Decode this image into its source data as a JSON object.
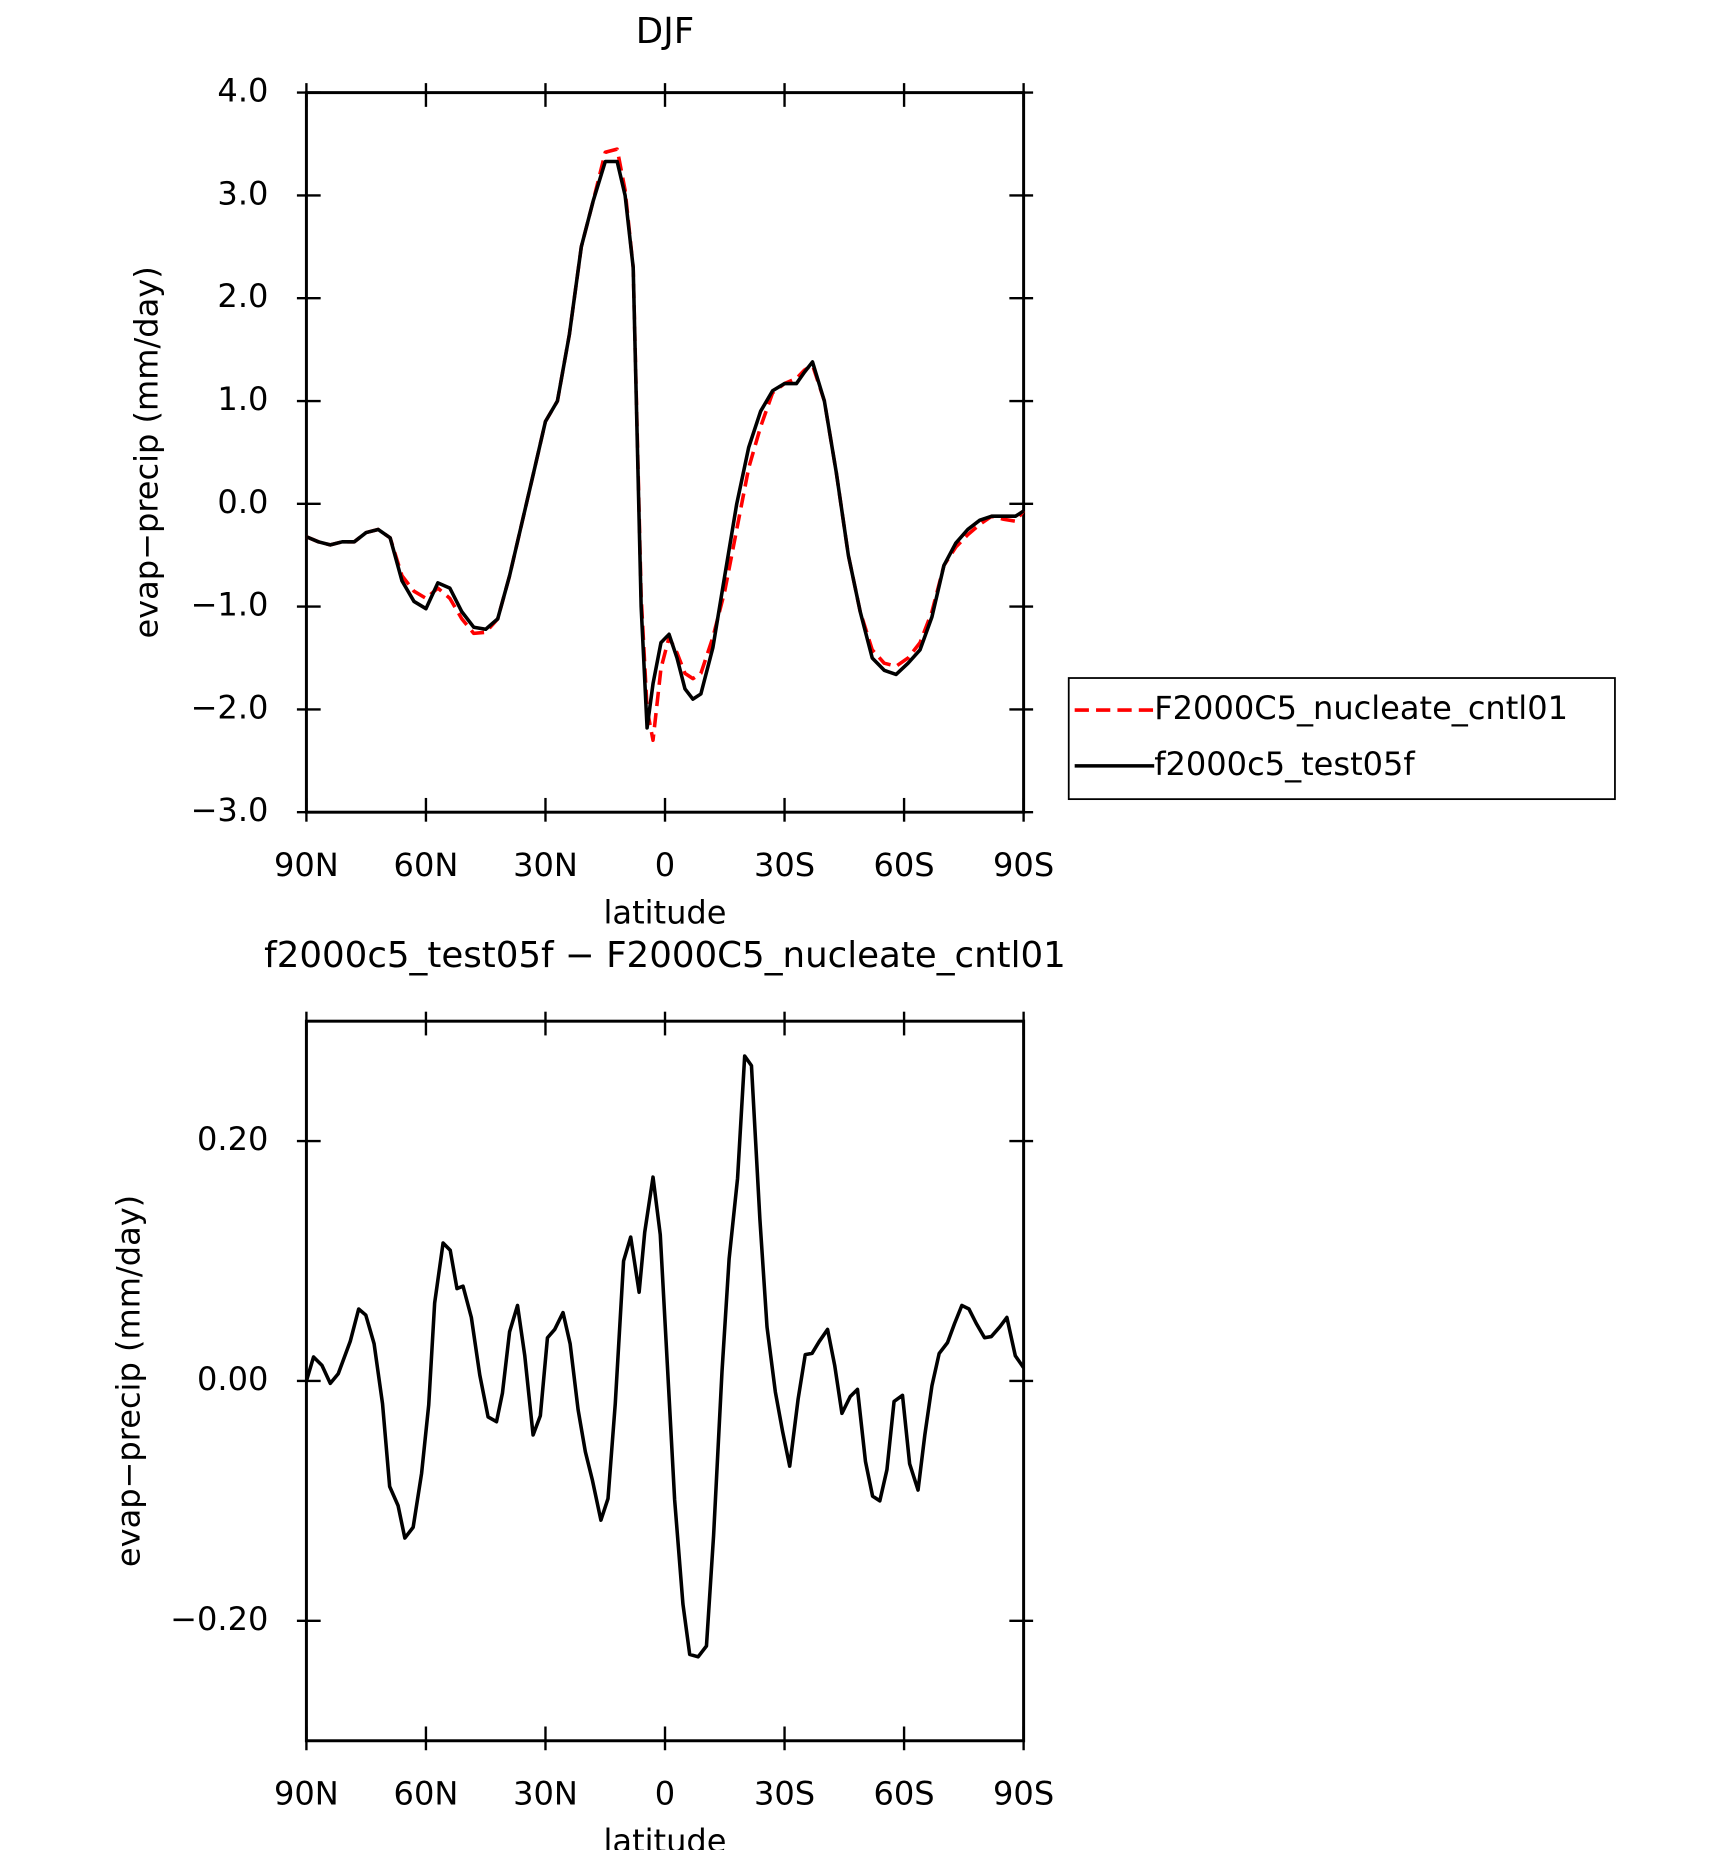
{
  "chart_data": [
    {
      "type": "line",
      "title": "DJF",
      "x_label": "latitude",
      "y_label": "evap−precip (mm/day)",
      "x": [
        90,
        87,
        84,
        81,
        78,
        75,
        72,
        69,
        66,
        63,
        60,
        57,
        54,
        51,
        48,
        45,
        42,
        39,
        36,
        33,
        30,
        27,
        24,
        21,
        18,
        15,
        12,
        10,
        8,
        6,
        4.5,
        3,
        1,
        -1,
        -3,
        -5,
        -7,
        -9,
        -12,
        -15,
        -18,
        -21,
        -24,
        -27,
        -30,
        -33,
        -35,
        -37,
        -40,
        -43,
        -46,
        -49,
        -52,
        -55,
        -58,
        -61,
        -64,
        -67,
        -70,
        -73,
        -76,
        -79,
        -82,
        -85,
        -88,
        -90
      ],
      "series": [
        {
          "name": "F2000C5_nucleate_cntl01",
          "color": "#ff0000",
          "linestyle": "dashed",
          "values": [
            -0.32,
            -0.37,
            -0.4,
            -0.37,
            -0.37,
            -0.28,
            -0.25,
            -0.33,
            -0.7,
            -0.85,
            -0.92,
            -0.82,
            -0.92,
            -1.12,
            -1.26,
            -1.25,
            -1.12,
            -0.7,
            -0.2,
            0.3,
            0.8,
            1.0,
            1.65,
            2.5,
            2.95,
            3.42,
            3.45,
            3.05,
            2.3,
            -0.9,
            -2.0,
            -2.3,
            -1.6,
            -1.3,
            -1.45,
            -1.65,
            -1.7,
            -1.65,
            -1.3,
            -0.85,
            -0.25,
            0.35,
            0.75,
            1.08,
            1.17,
            1.22,
            1.3,
            1.35,
            1.0,
            0.3,
            -0.5,
            -1.05,
            -1.42,
            -1.55,
            -1.58,
            -1.5,
            -1.35,
            -1.05,
            -0.6,
            -0.42,
            -0.3,
            -0.2,
            -0.12,
            -0.15,
            -0.17,
            -0.07
          ]
        },
        {
          "name": "f2000c5_test05f",
          "color": "#000000",
          "linestyle": "solid",
          "values": [
            -0.32,
            -0.37,
            -0.4,
            -0.37,
            -0.37,
            -0.28,
            -0.25,
            -0.33,
            -0.75,
            -0.95,
            -1.02,
            -0.77,
            -0.82,
            -1.05,
            -1.2,
            -1.22,
            -1.12,
            -0.7,
            -0.2,
            0.3,
            0.8,
            1.0,
            1.65,
            2.5,
            2.95,
            3.33,
            3.33,
            3.0,
            2.3,
            -1.0,
            -2.18,
            -1.75,
            -1.35,
            -1.27,
            -1.5,
            -1.8,
            -1.9,
            -1.85,
            -1.4,
            -0.7,
            0.0,
            0.55,
            0.9,
            1.1,
            1.17,
            1.17,
            1.28,
            1.38,
            1.0,
            0.3,
            -0.5,
            -1.05,
            -1.5,
            -1.62,
            -1.66,
            -1.55,
            -1.42,
            -1.1,
            -0.6,
            -0.38,
            -0.25,
            -0.16,
            -0.12,
            -0.12,
            -0.12,
            -0.07
          ]
        }
      ],
      "xlim": [
        90,
        -90
      ],
      "xticks": [
        {
          "value": 90,
          "label": "90N"
        },
        {
          "value": 60,
          "label": "60N"
        },
        {
          "value": 30,
          "label": "30N"
        },
        0,
        {
          "value": -30,
          "label": "30S"
        },
        {
          "value": -60,
          "label": "60S"
        },
        {
          "value": -90,
          "label": "90S"
        }
      ],
      "ylim": [
        -3,
        4
      ],
      "yticks": [
        {
          "value": -3,
          "label": "−3.0"
        },
        {
          "value": -2,
          "label": "−2.0"
        },
        {
          "value": -1,
          "label": "−1.0"
        },
        {
          "value": 0,
          "label": "0.0"
        },
        {
          "value": 1,
          "label": "1.0"
        },
        {
          "value": 2,
          "label": "2.0"
        },
        {
          "value": 3,
          "label": "3.0"
        },
        {
          "value": 4,
          "label": "4.0"
        }
      ],
      "legend": "right"
    },
    {
      "type": "line",
      "title": "f2000c5_test05f − F2000C5_nucleate_cntl01",
      "x_label": "latitude",
      "y_label": "evap−precip (mm/day)",
      "x": [
        90,
        88.2,
        86.1,
        84,
        82,
        79,
        76.9,
        75.1,
        73,
        70.9,
        69.1,
        67,
        65.3,
        63.2,
        61.1,
        59.3,
        57.8,
        55.7,
        53.9,
        52.2,
        50.7,
        48.6,
        46.5,
        44.4,
        42.3,
        40.8,
        39,
        37,
        35.2,
        33.1,
        31.3,
        29.5,
        27.7,
        25.6,
        23.8,
        21.8,
        20,
        18.2,
        16.1,
        14.3,
        12.5,
        10.4,
        8.6,
        6.5,
        5.1,
        3,
        1.2,
        -0.6,
        -2.4,
        -4.5,
        -6.2,
        -8.3,
        -10.4,
        -12.2,
        -14.3,
        -16.1,
        -18.2,
        -20,
        -21.7,
        -23.8,
        -25.6,
        -27.7,
        -29.5,
        -31.3,
        -33.4,
        -35.2,
        -36.9,
        -38.7,
        -40.8,
        -42.6,
        -44.4,
        -46.5,
        -48.3,
        -50.3,
        -52.1,
        -53.9,
        -55.7,
        -57.5,
        -59.6,
        -61.4,
        -63.5,
        -65.2,
        -67,
        -68.8,
        -70.9,
        -72.7,
        -74.5,
        -76.3,
        -78.1,
        -80.2,
        -81.9,
        -84,
        -85.8,
        -87.9,
        -90
      ],
      "series": [
        {
          "color": "#000000",
          "linestyle": "solid",
          "values": [
            0.0,
            0.02,
            0.013,
            -0.002,
            0.006,
            0.033,
            0.06,
            0.055,
            0.031,
            -0.019,
            -0.088,
            -0.104,
            -0.131,
            -0.122,
            -0.077,
            -0.02,
            0.065,
            0.115,
            0.109,
            0.077,
            0.079,
            0.053,
            0.005,
            -0.03,
            -0.034,
            -0.01,
            0.041,
            0.063,
            0.021,
            -0.045,
            -0.029,
            0.036,
            0.043,
            0.057,
            0.031,
            -0.024,
            -0.059,
            -0.083,
            -0.116,
            -0.098,
            -0.019,
            0.1,
            0.12,
            0.074,
            0.124,
            0.17,
            0.122,
            0.013,
            -0.099,
            -0.186,
            -0.228,
            -0.23,
            -0.221,
            -0.129,
            0.008,
            0.102,
            0.169,
            0.271,
            0.263,
            0.135,
            0.045,
            -0.009,
            -0.042,
            -0.071,
            -0.015,
            0.022,
            0.023,
            0.033,
            0.043,
            0.013,
            -0.027,
            -0.013,
            -0.007,
            -0.067,
            -0.096,
            -0.1,
            -0.074,
            -0.017,
            -0.012,
            -0.069,
            -0.091,
            -0.045,
            -0.004,
            0.023,
            0.032,
            0.048,
            0.063,
            0.06,
            0.048,
            0.036,
            0.037,
            0.045,
            0.053,
            0.021,
            0.011
          ]
        }
      ],
      "xlim": [
        90,
        -90
      ],
      "xticks": [
        {
          "value": 90,
          "label": "90N"
        },
        {
          "value": 60,
          "label": "60N"
        },
        {
          "value": 30,
          "label": "30N"
        },
        0,
        {
          "value": -30,
          "label": "30S"
        },
        {
          "value": -60,
          "label": "60S"
        },
        {
          "value": -90,
          "label": "90S"
        }
      ],
      "ylim": [
        -0.3,
        0.3
      ],
      "yticks": [
        {
          "value": -0.2,
          "label": "−0.20"
        },
        {
          "value": 0,
          "label": "0.00"
        },
        {
          "value": 0.2,
          "label": "0.20"
        }
      ]
    }
  ]
}
